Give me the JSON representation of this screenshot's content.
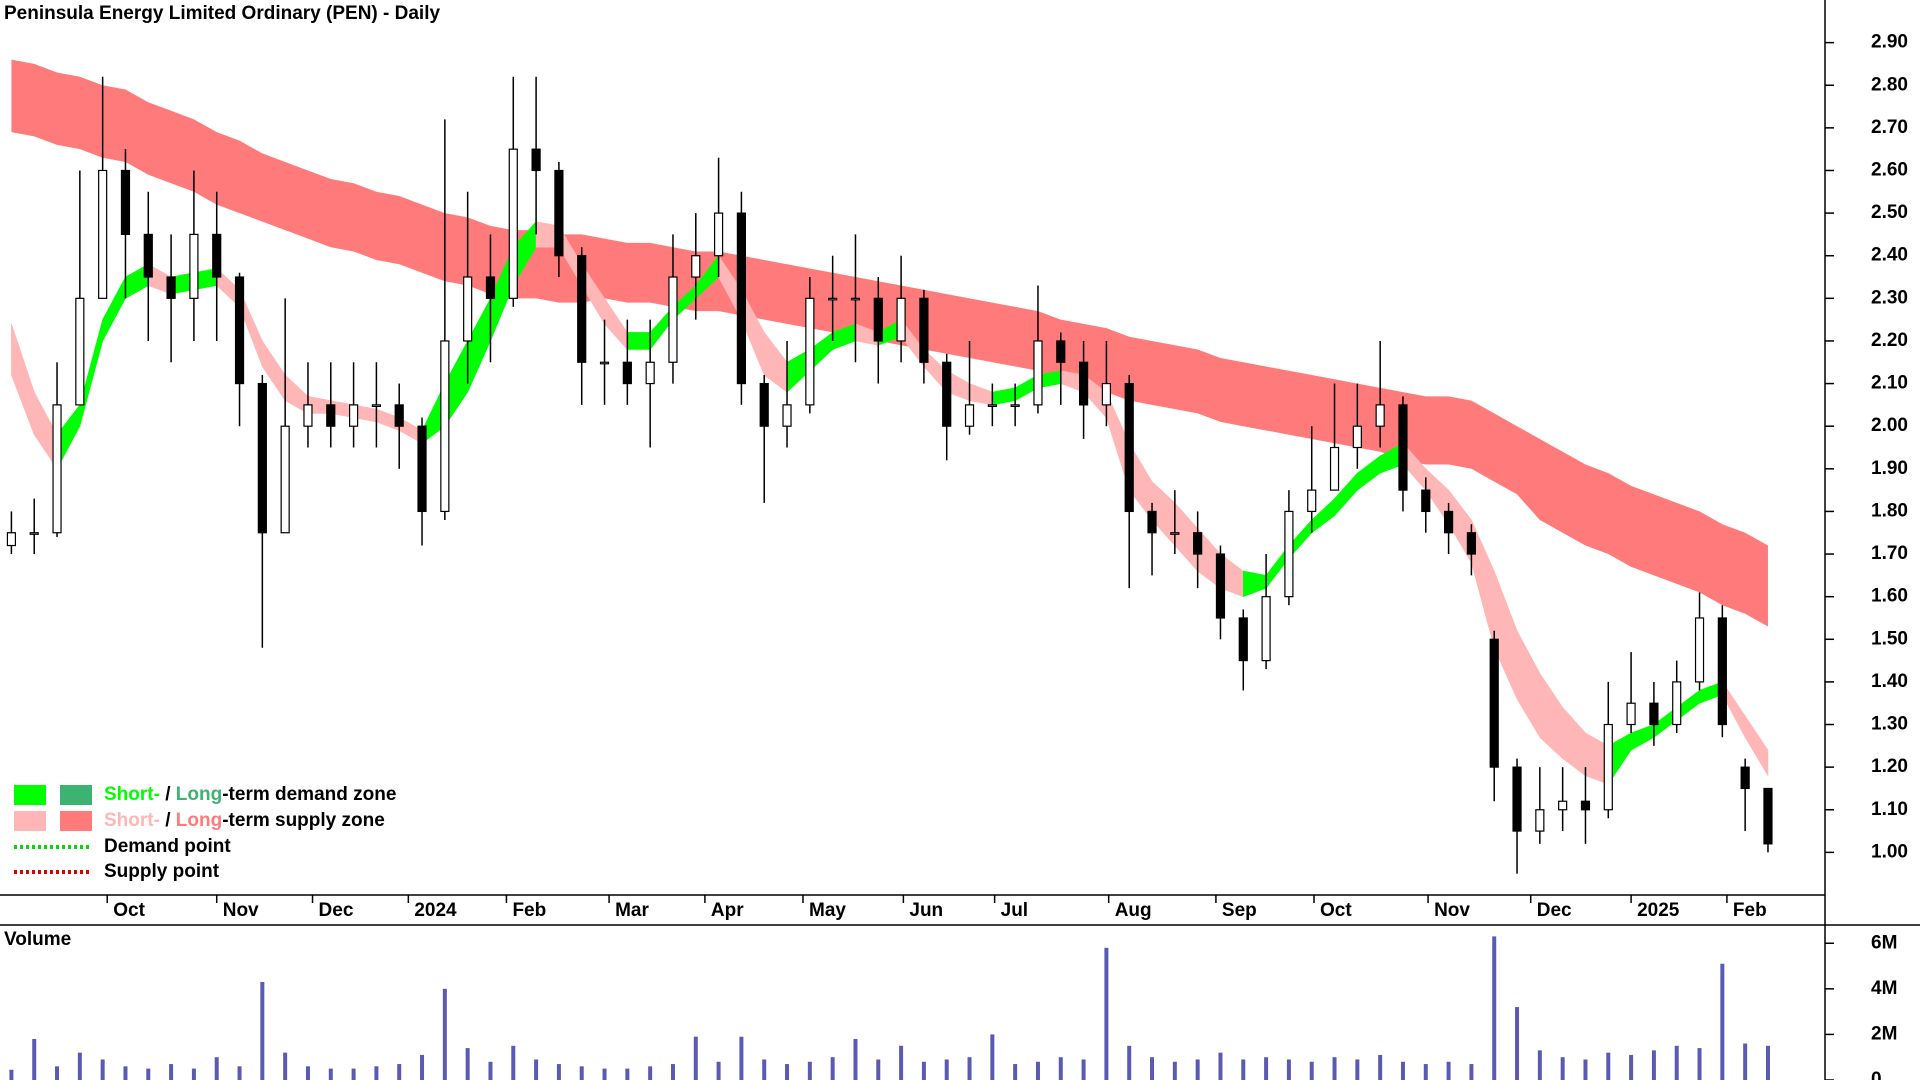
{
  "chart_data": [
    {
      "type": "candlestick",
      "title": "Peninsula Energy Limited Ordinary (PEN) - Daily",
      "xlim": [
        0,
        80
      ],
      "xticks": [
        {
          "value": 4.7,
          "label": "Oct"
        },
        {
          "value": 9.5,
          "label": "Nov"
        },
        {
          "value": 13.7,
          "label": "Dec"
        },
        {
          "value": 17.9,
          "label": "2024"
        },
        {
          "value": 22.2,
          "label": "Feb"
        },
        {
          "value": 26.7,
          "label": "Mar"
        },
        {
          "value": 30.9,
          "label": "Apr"
        },
        {
          "value": 35.2,
          "label": "May"
        },
        {
          "value": 39.6,
          "label": "Jun"
        },
        {
          "value": 43.6,
          "label": "Jul"
        },
        {
          "value": 48.6,
          "label": "Aug"
        },
        {
          "value": 53.3,
          "label": "Sep"
        },
        {
          "value": 57.6,
          "label": "Oct"
        },
        {
          "value": 62.6,
          "label": "Nov"
        },
        {
          "value": 67.1,
          "label": "Dec"
        },
        {
          "value": 71.5,
          "label": "2025"
        },
        {
          "value": 75.7,
          "label": "Feb"
        }
      ],
      "ylim": [
        0.9,
        3.0
      ],
      "yticks": [
        {
          "value": 1.0,
          "label": "1.00"
        },
        {
          "value": 1.1,
          "label": "1.10"
        },
        {
          "value": 1.2,
          "label": "1.20"
        },
        {
          "value": 1.3,
          "label": "1.30"
        },
        {
          "value": 1.4,
          "label": "1.40"
        },
        {
          "value": 1.5,
          "label": "1.50"
        },
        {
          "value": 1.6,
          "label": "1.60"
        },
        {
          "value": 1.7,
          "label": "1.70"
        },
        {
          "value": 1.8,
          "label": "1.80"
        },
        {
          "value": 1.9,
          "label": "1.90"
        },
        {
          "value": 2.0,
          "label": "2.00"
        },
        {
          "value": 2.1,
          "label": "2.10"
        },
        {
          "value": 2.2,
          "label": "2.20"
        },
        {
          "value": 2.3,
          "label": "2.30"
        },
        {
          "value": 2.4,
          "label": "2.40"
        },
        {
          "value": 2.5,
          "label": "2.50"
        },
        {
          "value": 2.6,
          "label": "2.60"
        },
        {
          "value": 2.7,
          "label": "2.70"
        },
        {
          "value": 2.8,
          "label": "2.80"
        },
        {
          "value": 2.9,
          "label": "2.90"
        }
      ],
      "up_color": "#ffffff",
      "down_color": "#000000",
      "open": [
        1.72,
        1.75,
        1.75,
        2.05,
        2.3,
        2.6,
        2.45,
        2.35,
        2.3,
        2.45,
        2.35,
        2.1,
        1.75,
        2.0,
        2.05,
        2.0,
        2.05,
        2.05,
        2.0,
        1.8,
        2.2,
        2.35,
        2.3,
        2.65,
        2.6,
        2.4,
        2.15,
        2.15,
        2.1,
        2.15,
        2.35,
        2.4,
        2.5,
        2.1,
        2.0,
        2.05,
        2.3,
        2.3,
        2.3,
        2.2,
        2.3,
        2.15,
        2.0,
        2.05,
        2.05,
        2.05,
        2.2,
        2.15,
        2.05,
        2.1,
        1.8,
        1.75,
        1.75,
        1.7,
        1.55,
        1.45,
        1.6,
        1.8,
        1.85,
        1.95,
        2.0,
        2.05,
        1.85,
        1.8,
        1.75,
        1.5,
        1.2,
        1.05,
        1.1,
        1.12,
        1.1,
        1.3,
        1.35,
        1.3,
        1.4,
        1.55,
        1.2,
        1.15
      ],
      "high": [
        1.8,
        1.83,
        2.15,
        2.6,
        2.82,
        2.65,
        2.55,
        2.45,
        2.6,
        2.55,
        2.36,
        2.12,
        2.3,
        2.15,
        2.15,
        2.15,
        2.15,
        2.1,
        2.02,
        2.72,
        2.55,
        2.45,
        2.82,
        2.82,
        2.62,
        2.42,
        2.25,
        2.25,
        2.25,
        2.45,
        2.5,
        2.63,
        2.55,
        2.12,
        2.2,
        2.35,
        2.4,
        2.45,
        2.35,
        2.4,
        2.32,
        2.17,
        2.2,
        2.1,
        2.1,
        2.33,
        2.22,
        2.2,
        2.2,
        2.12,
        1.82,
        1.85,
        1.8,
        1.72,
        1.57,
        1.7,
        1.85,
        2.0,
        2.1,
        2.1,
        2.2,
        2.07,
        1.88,
        1.82,
        1.77,
        1.52,
        1.22,
        1.2,
        1.2,
        1.2,
        1.4,
        1.47,
        1.4,
        1.45,
        1.61,
        1.58,
        1.22,
        1.15
      ],
      "low": [
        1.7,
        1.7,
        1.74,
        2.05,
        2.3,
        2.3,
        2.2,
        2.15,
        2.2,
        2.2,
        2.0,
        1.48,
        1.75,
        1.95,
        1.95,
        1.95,
        1.95,
        1.9,
        1.72,
        1.78,
        2.1,
        2.15,
        2.28,
        2.45,
        2.35,
        2.05,
        2.05,
        2.05,
        1.95,
        2.1,
        2.25,
        2.35,
        2.05,
        1.82,
        1.95,
        2.03,
        2.2,
        2.15,
        2.1,
        2.15,
        2.1,
        1.92,
        1.98,
        2.0,
        2.0,
        2.03,
        2.05,
        1.97,
        2.0,
        1.62,
        1.65,
        1.7,
        1.62,
        1.5,
        1.38,
        1.43,
        1.58,
        1.75,
        1.85,
        1.9,
        1.95,
        1.8,
        1.75,
        1.7,
        1.65,
        1.12,
        0.95,
        1.02,
        1.05,
        1.02,
        1.08,
        1.28,
        1.25,
        1.28,
        1.38,
        1.27,
        1.05,
        1.0
      ],
      "close": [
        1.75,
        1.75,
        2.05,
        2.3,
        2.6,
        2.45,
        2.35,
        2.3,
        2.45,
        2.35,
        2.1,
        1.75,
        2.0,
        2.05,
        2.0,
        2.05,
        2.05,
        2.0,
        1.8,
        2.2,
        2.35,
        2.3,
        2.65,
        2.6,
        2.4,
        2.15,
        2.15,
        2.1,
        2.15,
        2.35,
        2.4,
        2.5,
        2.1,
        2.0,
        2.05,
        2.3,
        2.3,
        2.3,
        2.2,
        2.3,
        2.15,
        2.0,
        2.05,
        2.05,
        2.05,
        2.2,
        2.15,
        2.05,
        2.1,
        1.8,
        1.75,
        1.75,
        1.7,
        1.55,
        1.45,
        1.6,
        1.8,
        1.85,
        1.95,
        2.0,
        2.05,
        1.85,
        1.8,
        1.75,
        1.7,
        1.2,
        1.05,
        1.1,
        1.12,
        1.1,
        1.3,
        1.35,
        1.3,
        1.4,
        1.55,
        1.3,
        1.15,
        1.02
      ],
      "long_band": {
        "upper": [
          2.86,
          2.85,
          2.83,
          2.82,
          2.8,
          2.79,
          2.76,
          2.74,
          2.72,
          2.69,
          2.67,
          2.64,
          2.62,
          2.6,
          2.58,
          2.57,
          2.55,
          2.54,
          2.52,
          2.5,
          2.49,
          2.47,
          2.46,
          2.46,
          2.45,
          2.45,
          2.44,
          2.43,
          2.43,
          2.42,
          2.41,
          2.41,
          2.4,
          2.39,
          2.38,
          2.37,
          2.36,
          2.35,
          2.34,
          2.33,
          2.32,
          2.31,
          2.3,
          2.29,
          2.28,
          2.27,
          2.25,
          2.24,
          2.23,
          2.21,
          2.2,
          2.19,
          2.18,
          2.16,
          2.15,
          2.14,
          2.13,
          2.12,
          2.11,
          2.1,
          2.09,
          2.08,
          2.07,
          2.07,
          2.06,
          2.03,
          2.0,
          1.97,
          1.94,
          1.91,
          1.89,
          1.86,
          1.84,
          1.82,
          1.8,
          1.77,
          1.75,
          1.72
        ],
        "lower": [
          2.69,
          2.68,
          2.66,
          2.65,
          2.63,
          2.62,
          2.59,
          2.57,
          2.55,
          2.52,
          2.5,
          2.48,
          2.46,
          2.44,
          2.42,
          2.41,
          2.39,
          2.38,
          2.36,
          2.34,
          2.33,
          2.31,
          2.3,
          2.3,
          2.29,
          2.29,
          2.3,
          2.29,
          2.29,
          2.28,
          2.27,
          2.27,
          2.26,
          2.25,
          2.24,
          2.23,
          2.22,
          2.21,
          2.2,
          2.19,
          2.18,
          2.17,
          2.16,
          2.15,
          2.14,
          2.13,
          2.1,
          2.09,
          2.08,
          2.06,
          2.05,
          2.04,
          2.03,
          2.01,
          2.0,
          1.99,
          1.98,
          1.97,
          1.96,
          1.95,
          1.94,
          1.92,
          1.91,
          1.91,
          1.9,
          1.87,
          1.84,
          1.78,
          1.75,
          1.72,
          1.7,
          1.67,
          1.65,
          1.63,
          1.61,
          1.58,
          1.56,
          1.53
        ]
      },
      "short_band": {
        "upper": [
          2.24,
          2.08,
          1.98,
          2.05,
          2.25,
          2.35,
          2.38,
          2.35,
          2.36,
          2.37,
          2.32,
          2.2,
          2.12,
          2.07,
          2.06,
          2.05,
          2.04,
          2.02,
          1.99,
          2.1,
          2.2,
          2.3,
          2.42,
          2.48,
          2.47,
          2.38,
          2.3,
          2.22,
          2.22,
          2.28,
          2.33,
          2.4,
          2.32,
          2.22,
          2.15,
          2.18,
          2.22,
          2.24,
          2.22,
          2.25,
          2.18,
          2.13,
          2.1,
          2.08,
          2.09,
          2.12,
          2.13,
          2.12,
          2.08,
          1.96,
          1.87,
          1.82,
          1.76,
          1.7,
          1.66,
          1.65,
          1.72,
          1.78,
          1.83,
          1.89,
          1.93,
          1.96,
          1.9,
          1.85,
          1.78,
          1.66,
          1.52,
          1.42,
          1.34,
          1.28,
          1.25,
          1.28,
          1.3,
          1.34,
          1.38,
          1.4,
          1.32,
          1.24
        ],
        "lower": [
          2.12,
          1.98,
          1.9,
          2.0,
          2.2,
          2.3,
          2.33,
          2.31,
          2.32,
          2.33,
          2.28,
          2.14,
          2.06,
          2.03,
          2.03,
          2.02,
          2.01,
          1.99,
          1.96,
          2.0,
          2.08,
          2.2,
          2.33,
          2.42,
          2.42,
          2.33,
          2.24,
          2.18,
          2.18,
          2.25,
          2.3,
          2.35,
          2.25,
          2.12,
          2.08,
          2.13,
          2.18,
          2.2,
          2.19,
          2.21,
          2.14,
          2.08,
          2.06,
          2.05,
          2.06,
          2.09,
          2.1,
          2.08,
          2.02,
          1.85,
          1.78,
          1.72,
          1.66,
          1.62,
          1.6,
          1.62,
          1.69,
          1.75,
          1.79,
          1.85,
          1.89,
          1.91,
          1.85,
          1.77,
          1.68,
          1.48,
          1.36,
          1.27,
          1.22,
          1.18,
          1.16,
          1.24,
          1.27,
          1.31,
          1.35,
          1.37,
          1.27,
          1.18
        ]
      },
      "zones": [
        {
          "parts": [
            "Short-",
            " / ",
            "Long",
            "-term demand zone"
          ],
          "short_color": "#00ff00",
          "long_color": "#3cb371"
        },
        {
          "parts": [
            "Short-",
            " / ",
            "Long",
            "-term supply zone"
          ],
          "short_color": "#ffb6b6",
          "long_color": "#ff7b7b"
        }
      ],
      "points": [
        {
          "label": "Demand point",
          "color": "#00dd00"
        },
        {
          "label": "Supply point",
          "color": "#dd0000"
        }
      ]
    },
    {
      "type": "bar",
      "title": "Volume",
      "title_color": "#4b0082",
      "color": "#5a5ab4",
      "xlim": [
        0,
        80
      ],
      "ylim": [
        0,
        6800000
      ],
      "yticks": [
        0,
        {
          "value": 2000000,
          "label": "2M"
        },
        {
          "value": 4000000,
          "label": "4M"
        },
        {
          "value": 6000000,
          "label": "6M"
        }
      ],
      "values": [
        450000,
        1800000,
        600000,
        1200000,
        900000,
        600000,
        500000,
        700000,
        500000,
        1000000,
        600000,
        4300000,
        1200000,
        600000,
        500000,
        500000,
        600000,
        700000,
        1100000,
        4000000,
        1400000,
        800000,
        1500000,
        900000,
        700000,
        600000,
        500000,
        500000,
        600000,
        700000,
        1900000,
        800000,
        1900000,
        900000,
        700000,
        800000,
        1000000,
        1800000,
        900000,
        1500000,
        800000,
        900000,
        1000000,
        2000000,
        700000,
        800000,
        1000000,
        900000,
        5800000,
        1500000,
        1000000,
        800000,
        900000,
        1200000,
        900000,
        1000000,
        900000,
        800000,
        1000000,
        900000,
        1100000,
        800000,
        700000,
        800000,
        700000,
        6300000,
        3200000,
        1300000,
        1000000,
        900000,
        1200000,
        1100000,
        1300000,
        1500000,
        1400000,
        5100000,
        1600000,
        1500000
      ]
    }
  ]
}
